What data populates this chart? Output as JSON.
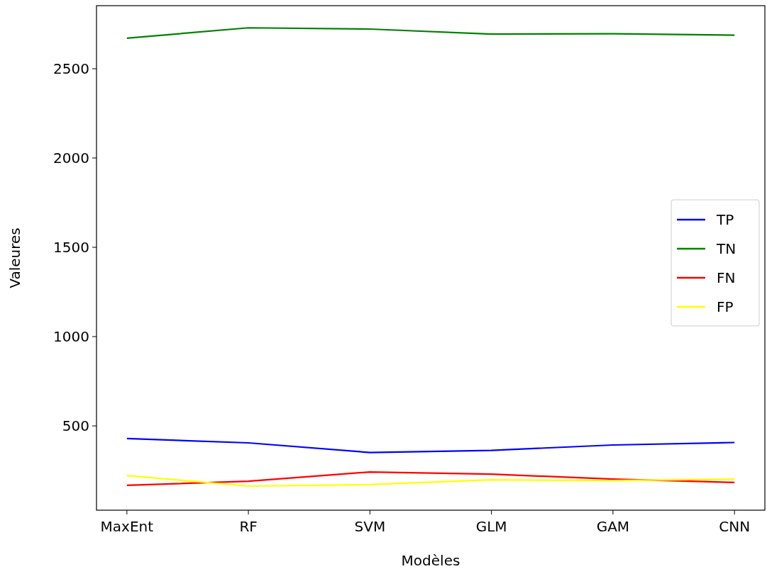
{
  "chart_data": {
    "type": "line",
    "xlabel": "Modèles",
    "ylabel": "Valeures",
    "categories": [
      "MaxEnt",
      "RF",
      "SVM",
      "GLM",
      "GAM",
      "CNN"
    ],
    "series": [
      {
        "name": "TP",
        "color": "#0000ff",
        "values": [
          429,
          405,
          351,
          363,
          393,
          407
        ]
      },
      {
        "name": "TN",
        "color": "#008000",
        "values": [
          2671,
          2729,
          2722,
          2694,
          2696,
          2688
        ]
      },
      {
        "name": "FN",
        "color": "#ff0000",
        "values": [
          167,
          190,
          242,
          230,
          202,
          183
        ]
      },
      {
        "name": "FP",
        "color": "#ffff00",
        "values": [
          222,
          163,
          171,
          198,
          194,
          202
        ]
      }
    ],
    "ylim": [
      28,
      2853
    ],
    "yticks": [
      500,
      1000,
      1500,
      2000,
      2500
    ],
    "legend": "right",
    "grid": false,
    "marker": "none",
    "line_style": "solid"
  }
}
